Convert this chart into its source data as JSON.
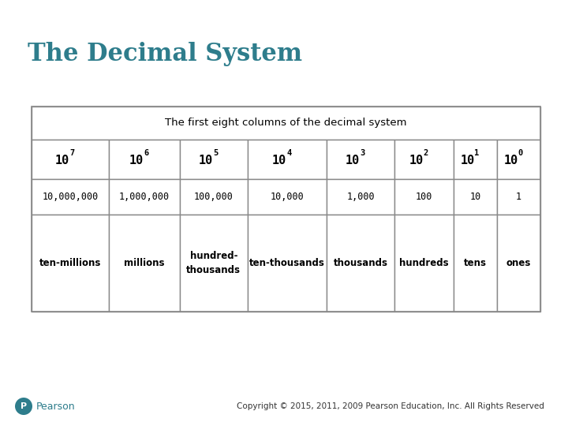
{
  "title": "The Decimal System",
  "title_color": "#2E7D8C",
  "table_header": "The first eight columns of the decimal system",
  "col_exponents": [
    "7",
    "6",
    "5",
    "4",
    "3",
    "2",
    "1",
    "0"
  ],
  "row2": [
    "10,000,000",
    "1,000,000",
    "100,000",
    "10,000",
    "1,000",
    "100",
    "10",
    "1"
  ],
  "row3": [
    "ten-millions",
    "millions",
    "hundred-\nthousands",
    "ten-thousands",
    "thousands",
    "hundreds",
    "tens",
    "ones"
  ],
  "copyright": "Copyright © 2015, 2011, 2009 Pearson Education, Inc. All Rights Reserved",
  "bg_color": "#FFFFFF",
  "border_color": "#888888",
  "text_color": "#000000",
  "pearson_color": "#2E7D8C",
  "pearson_circle_color": "#2E7D8C"
}
